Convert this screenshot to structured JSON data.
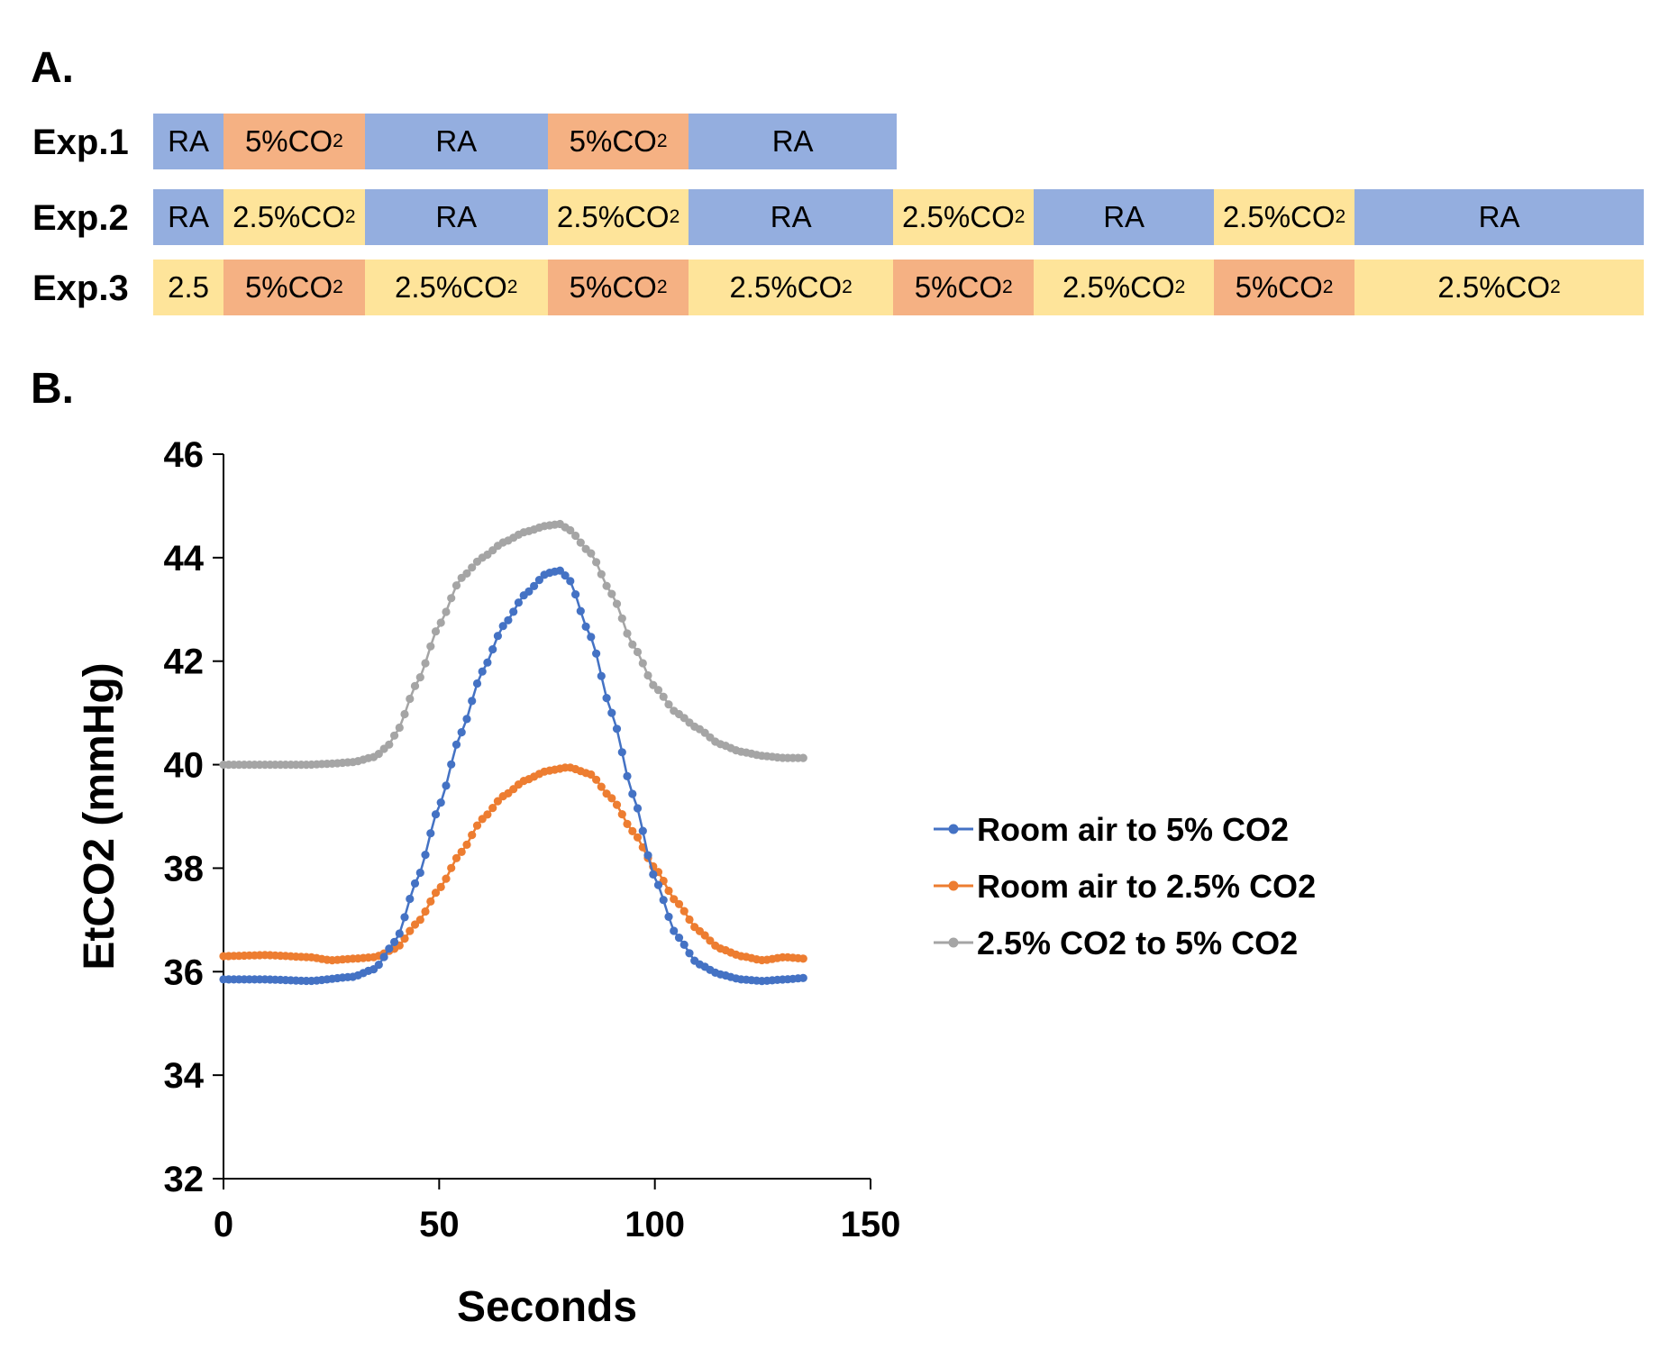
{
  "panel_a": {
    "label": "A.",
    "colors": {
      "RA": "#94aedf",
      "5%CO2": "#f5b183",
      "2.5%CO2": "#fee49a"
    },
    "rows": [
      {
        "label": "Exp.1",
        "segments": [
          {
            "text": "RA",
            "sub": "",
            "kind": "RA",
            "units": 1
          },
          {
            "text": "5%CO",
            "sub": "2",
            "kind": "5%CO2",
            "units": 2
          },
          {
            "text": "RA",
            "sub": "",
            "kind": "RA",
            "units": 2.6
          },
          {
            "text": "5%CO",
            "sub": "2",
            "kind": "5%CO2",
            "units": 2
          },
          {
            "text": "RA",
            "sub": "",
            "kind": "RA",
            "units": 2.95
          }
        ]
      },
      {
        "label": "Exp.2",
        "segments": [
          {
            "text": "RA",
            "sub": "",
            "kind": "RA",
            "units": 1
          },
          {
            "text": "2.5%CO",
            "sub": "2",
            "kind": "2.5%CO2",
            "units": 2
          },
          {
            "text": "RA",
            "sub": "",
            "kind": "RA",
            "units": 2.6
          },
          {
            "text": "2.5%CO",
            "sub": "2",
            "kind": "2.5%CO2",
            "units": 2
          },
          {
            "text": "RA",
            "sub": "",
            "kind": "RA",
            "units": 2.9
          },
          {
            "text": "2.5%CO",
            "sub": "2",
            "kind": "2.5%CO2",
            "units": 2
          },
          {
            "text": "RA",
            "sub": "",
            "kind": "RA",
            "units": 2.55
          },
          {
            "text": "2.5%CO",
            "sub": "2",
            "kind": "2.5%CO2",
            "units": 2
          },
          {
            "text": "RA",
            "sub": "",
            "kind": "RA",
            "units": 4.1
          }
        ]
      },
      {
        "label": "Exp.3",
        "segments": [
          {
            "text": "2.5",
            "sub": "",
            "kind": "2.5%CO2",
            "units": 1
          },
          {
            "text": "5%CO",
            "sub": "2",
            "kind": "5%CO2",
            "units": 2
          },
          {
            "text": "2.5%CO",
            "sub": "2",
            "kind": "2.5%CO2",
            "units": 2.6
          },
          {
            "text": "5%CO",
            "sub": "2",
            "kind": "5%CO2",
            "units": 2
          },
          {
            "text": "2.5%CO",
            "sub": "2",
            "kind": "2.5%CO2",
            "units": 2.9
          },
          {
            "text": "5%CO",
            "sub": "2",
            "kind": "5%CO2",
            "units": 2
          },
          {
            "text": "2.5%CO",
            "sub": "2",
            "kind": "2.5%CO2",
            "units": 2.55
          },
          {
            "text": "5%CO",
            "sub": "2",
            "kind": "5%CO2",
            "units": 2
          },
          {
            "text": "2.5%CO",
            "sub": "2",
            "kind": "2.5%CO2",
            "units": 4.1
          }
        ]
      }
    ]
  },
  "panel_b": {
    "label": "B."
  },
  "chart_data": {
    "type": "line",
    "title": "",
    "xlabel": "Seconds",
    "ylabel": "EtCO2 (mmHg)",
    "xlim": [
      0,
      150
    ],
    "ylim": [
      32,
      46
    ],
    "xticks": [
      0,
      50,
      100,
      150
    ],
    "yticks": [
      32,
      34,
      36,
      38,
      40,
      42,
      44,
      46
    ],
    "grid": false,
    "legend": "right",
    "series": [
      {
        "name": "Room air to 5% CO2",
        "color": "#4472c4",
        "x": [
          0,
          10,
          20,
          30,
          35,
          40,
          45,
          50,
          55,
          60,
          65,
          70,
          75,
          78,
          80,
          85,
          90,
          95,
          100,
          105,
          110,
          115,
          120,
          125,
          130,
          135
        ],
        "y": [
          35.85,
          35.85,
          35.82,
          35.9,
          36.05,
          36.6,
          37.8,
          39.2,
          40.6,
          41.8,
          42.7,
          43.3,
          43.7,
          43.75,
          43.6,
          42.5,
          41.0,
          39.4,
          37.8,
          36.7,
          36.15,
          35.95,
          35.85,
          35.82,
          35.85,
          35.88
        ]
      },
      {
        "name": "Room air to 2.5% CO2",
        "color": "#ed7d31",
        "x": [
          0,
          10,
          20,
          25,
          30,
          35,
          40,
          45,
          50,
          55,
          60,
          65,
          70,
          75,
          80,
          85,
          90,
          95,
          100,
          105,
          110,
          115,
          120,
          125,
          130,
          135
        ],
        "y": [
          36.3,
          36.32,
          36.28,
          36.22,
          36.25,
          36.28,
          36.45,
          36.95,
          37.6,
          38.3,
          38.95,
          39.4,
          39.7,
          39.88,
          39.95,
          39.82,
          39.35,
          38.7,
          38.0,
          37.35,
          36.8,
          36.45,
          36.3,
          36.22,
          36.28,
          36.25
        ]
      },
      {
        "name": "2.5% CO2 to 5% CO2",
        "color": "#a5a5a5",
        "x": [
          0,
          10,
          20,
          25,
          30,
          35,
          38,
          40,
          45,
          50,
          55,
          60,
          65,
          70,
          75,
          78,
          80,
          85,
          90,
          95,
          100,
          105,
          110,
          115,
          120,
          125,
          130,
          135
        ],
        "y": [
          40.0,
          40.0,
          40.0,
          40.02,
          40.05,
          40.15,
          40.35,
          40.6,
          41.6,
          42.7,
          43.6,
          44.0,
          44.3,
          44.5,
          44.62,
          44.65,
          44.55,
          44.1,
          43.3,
          42.3,
          41.5,
          41.0,
          40.7,
          40.4,
          40.25,
          40.17,
          40.13,
          40.13
        ]
      }
    ]
  }
}
